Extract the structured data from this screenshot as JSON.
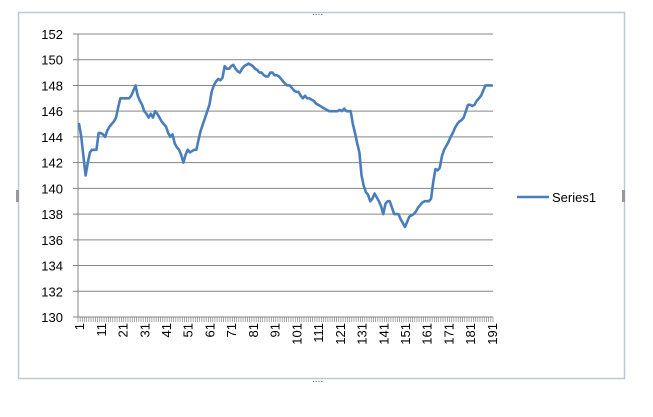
{
  "chart_data": {
    "type": "line",
    "categories": [
      1,
      null,
      null,
      null,
      null,
      null,
      null,
      null,
      null,
      null,
      11,
      null,
      null,
      null,
      null,
      null,
      null,
      null,
      null,
      null,
      21,
      null,
      null,
      null,
      null,
      null,
      null,
      null,
      null,
      null,
      31,
      null,
      null,
      null,
      null,
      null,
      null,
      null,
      null,
      null,
      41,
      null,
      null,
      null,
      null,
      null,
      null,
      null,
      null,
      null,
      51,
      null,
      null,
      null,
      null,
      null,
      null,
      null,
      null,
      null,
      61,
      null,
      null,
      null,
      null,
      null,
      null,
      null,
      null,
      null,
      71,
      null,
      null,
      null,
      null,
      null,
      null,
      null,
      null,
      null,
      81,
      null,
      null,
      null,
      null,
      null,
      null,
      null,
      null,
      null,
      91,
      null,
      null,
      null,
      null,
      null,
      null,
      null,
      null,
      null,
      101,
      null,
      null,
      null,
      null,
      null,
      null,
      null,
      null,
      null,
      111,
      null,
      null,
      null,
      null,
      null,
      null,
      null,
      null,
      null,
      121,
      null,
      null,
      null,
      null,
      null,
      null,
      null,
      null,
      null,
      131,
      null,
      null,
      null,
      null,
      null,
      null,
      null,
      null,
      null,
      141,
      null,
      null,
      null,
      null,
      null,
      null,
      null,
      null,
      null,
      151,
      null,
      null,
      null,
      null,
      null,
      null,
      null,
      null,
      null,
      161,
      null,
      null,
      null,
      null,
      null,
      null,
      null,
      null,
      null,
      171,
      null,
      null,
      null,
      null,
      null,
      null,
      null,
      null,
      null,
      181,
      null,
      null,
      null,
      null,
      null,
      null,
      null,
      null,
      null,
      191
    ],
    "series": [
      {
        "name": "Series1",
        "color": "#4a7ebb",
        "values": [
          145,
          144,
          142.5,
          141,
          142,
          142.8,
          143,
          143,
          143,
          144.3,
          144.3,
          144.2,
          144,
          144.5,
          144.8,
          145,
          145.2,
          145.5,
          146.3,
          147,
          147,
          147,
          147,
          147,
          147.2,
          147.6,
          148,
          147.2,
          146.8,
          146.5,
          146,
          145.8,
          145.5,
          145.8,
          145.5,
          146,
          145.8,
          145.5,
          145.2,
          145,
          144.8,
          144.3,
          144,
          144.2,
          143.5,
          143.2,
          143,
          142.6,
          142,
          142.6,
          143,
          142.8,
          142.9,
          143,
          143,
          143.8,
          144.5,
          145,
          145.5,
          146,
          146.5,
          147.5,
          148,
          148.3,
          148.5,
          148.4,
          148.6,
          149.5,
          149.3,
          149.3,
          149.5,
          149.6,
          149.3,
          149.1,
          149,
          149.3,
          149.5,
          149.6,
          149.7,
          149.6,
          149.5,
          149.3,
          149.2,
          149,
          149,
          148.8,
          148.7,
          148.7,
          149,
          149,
          148.8,
          148.8,
          148.7,
          148.5,
          148.3,
          148.1,
          148,
          148,
          147.8,
          147.6,
          147.5,
          147.5,
          147.2,
          147,
          147.2,
          147,
          147,
          146.9,
          146.8,
          146.6,
          146.5,
          146.4,
          146.3,
          146.2,
          146.1,
          146,
          146,
          146,
          146,
          146,
          146.1,
          146,
          146.2,
          146,
          146,
          146,
          145,
          144.3,
          143.5,
          142.8,
          141,
          140.2,
          139.7,
          139.5,
          139,
          139.2,
          139.6,
          139.3,
          139,
          138.6,
          138,
          138.8,
          139,
          139,
          138.5,
          138,
          138,
          138,
          137.6,
          137.3,
          137,
          137.4,
          137.8,
          137.9,
          138,
          138.2,
          138.5,
          138.7,
          138.9,
          139,
          139,
          139,
          139.2,
          140.5,
          141.5,
          141.4,
          141.6,
          142.5,
          143,
          143.3,
          143.6,
          144,
          144.3,
          144.7,
          145,
          145.2,
          145.3,
          145.5,
          146,
          146.5,
          146.5,
          146.4,
          146.5,
          146.8,
          147,
          147.2,
          147.6,
          148,
          148,
          148,
          148
        ]
      }
    ],
    "ylim": [
      130,
      152
    ],
    "yticks": [
      130,
      132,
      134,
      136,
      138,
      140,
      142,
      144,
      146,
      148,
      150,
      152
    ],
    "grid": true,
    "legend": "right"
  }
}
